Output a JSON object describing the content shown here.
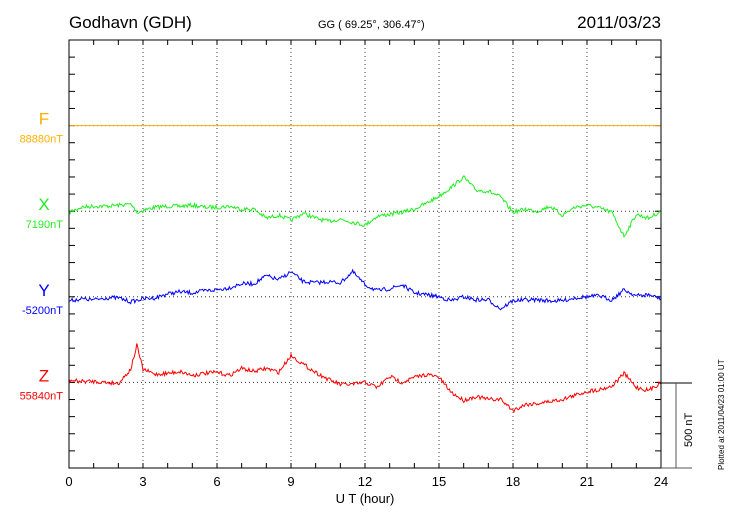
{
  "header": {
    "station": "Godhavn (GDH)",
    "coords": "GG ( 69.25°, 306.47°)",
    "date": "2011/03/23"
  },
  "footer": {
    "plotted": "Plotted at 2011/04/23 01:00 UT",
    "scale_label": "500 nT"
  },
  "chart_data": {
    "type": "line",
    "title": "Godhavn (GDH)",
    "xlabel": "U T (hour)",
    "ylabel": "",
    "xlim": [
      0,
      24
    ],
    "xticks": [
      "0",
      "3",
      "6",
      "9",
      "12",
      "15",
      "18",
      "21",
      "24"
    ],
    "xtick_values": [
      0,
      3,
      6,
      9,
      12,
      15,
      18,
      21,
      24
    ],
    "grid": true,
    "scale_bar_nT": 500,
    "series": [
      {
        "name": "F",
        "baseline_label": "88880nT",
        "color": "#ffb000",
        "x": [
          0,
          24
        ],
        "values": [
          0,
          0
        ]
      },
      {
        "name": "X",
        "baseline_label": "7190nT",
        "color": "#1fee1f",
        "x": [
          0,
          0.5,
          1,
          1.5,
          2,
          2.5,
          2.8,
          3,
          3.5,
          4,
          4.5,
          5,
          5.5,
          6,
          6.5,
          7,
          7.5,
          8,
          8.5,
          9,
          9.5,
          10,
          10.5,
          11,
          11.5,
          12,
          12.5,
          13,
          13.5,
          14,
          14.5,
          15,
          15.5,
          16,
          16.5,
          17,
          17.5,
          18,
          18.5,
          19,
          19.5,
          20,
          20.5,
          21,
          21.5,
          22,
          22.5,
          23,
          23.5,
          24
        ],
        "values": [
          -6,
          23,
          29,
          29,
          35,
          41,
          -10,
          6,
          23,
          29,
          29,
          35,
          23,
          23,
          29,
          12,
          12,
          -41,
          -23,
          -53,
          -12,
          -41,
          -59,
          -47,
          -64,
          -82,
          -29,
          -18,
          -6,
          12,
          47,
          88,
          140,
          199,
          123,
          117,
          82,
          -6,
          12,
          0,
          29,
          -23,
          23,
          35,
          18,
          -6,
          -146,
          -18,
          -41,
          0
        ]
      },
      {
        "name": "Y",
        "baseline_label": "-5200nT",
        "color": "#0000ff",
        "x": [
          0,
          0.5,
          1,
          1.5,
          2,
          2.5,
          3,
          3.5,
          4,
          4.5,
          5,
          5.5,
          6,
          6.5,
          7,
          7.5,
          8,
          8.5,
          9,
          9.5,
          10,
          10.5,
          11,
          11.5,
          12,
          12.5,
          13,
          13.5,
          14,
          14.5,
          15,
          15.5,
          16,
          16.5,
          17,
          17.5,
          18,
          18.5,
          19,
          19.5,
          20,
          20.5,
          21,
          21.5,
          22,
          22.5,
          23,
          23.5,
          24
        ],
        "values": [
          -23,
          -12,
          -18,
          -6,
          -6,
          -29,
          -12,
          -6,
          18,
          29,
          23,
          35,
          41,
          53,
          76,
          76,
          123,
          99,
          146,
          88,
          82,
          88,
          82,
          146,
          70,
          35,
          47,
          70,
          23,
          12,
          0,
          -23,
          0,
          -18,
          -18,
          -70,
          -23,
          -18,
          -18,
          -23,
          -23,
          -6,
          0,
          6,
          -18,
          41,
          6,
          12,
          -12
        ]
      },
      {
        "name": "Z",
        "baseline_label": "55840nT",
        "color": "#ff0000",
        "x": [
          0,
          0.5,
          1,
          1.5,
          2,
          2.5,
          2.75,
          3,
          3.5,
          4,
          4.5,
          5,
          5.5,
          6,
          6.5,
          7,
          7.5,
          8,
          8.5,
          9,
          9.5,
          10,
          10.5,
          11,
          11.5,
          12,
          12.5,
          13,
          13.5,
          14,
          14.5,
          15,
          15.5,
          16,
          16.5,
          17,
          17.5,
          18,
          18.5,
          19,
          19.5,
          20,
          20.5,
          21,
          21.5,
          22,
          22.5,
          23,
          23.5,
          24
        ],
        "values": [
          12,
          6,
          6,
          0,
          -6,
          76,
          216,
          76,
          47,
          53,
          64,
          41,
          53,
          59,
          41,
          82,
          64,
          82,
          59,
          158,
          105,
          59,
          18,
          -12,
          -12,
          0,
          -29,
          35,
          0,
          29,
          47,
          29,
          -59,
          -105,
          -82,
          -99,
          -99,
          -164,
          -129,
          -123,
          -111,
          -99,
          -76,
          -53,
          -41,
          -23,
          53,
          -29,
          -47,
          0
        ]
      }
    ]
  }
}
